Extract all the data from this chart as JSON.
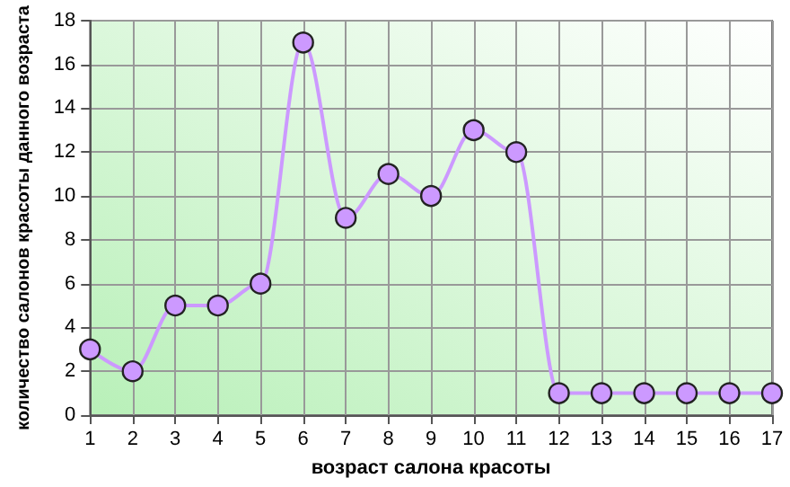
{
  "chart_data": {
    "type": "line",
    "xlabel": "возраст салона красоты",
    "ylabel": "количество салонов красоты данного возраста",
    "categories": [
      "1",
      "2",
      "3",
      "4",
      "5",
      "6",
      "7",
      "8",
      "9",
      "10",
      "11",
      "12",
      "13",
      "14",
      "15",
      "16",
      "17"
    ],
    "series": [
      {
        "color": "#cc99ff",
        "values": [
          3,
          2,
          5,
          5,
          6,
          17,
          9,
          11,
          10,
          13,
          12,
          1,
          1,
          1,
          1,
          1,
          1
        ]
      }
    ],
    "ylim": [
      0,
      18
    ],
    "yticks": [
      0,
      2,
      4,
      6,
      8,
      10,
      12,
      14,
      16,
      18
    ],
    "grid": true,
    "marker": "circle",
    "line_style": "solid"
  }
}
